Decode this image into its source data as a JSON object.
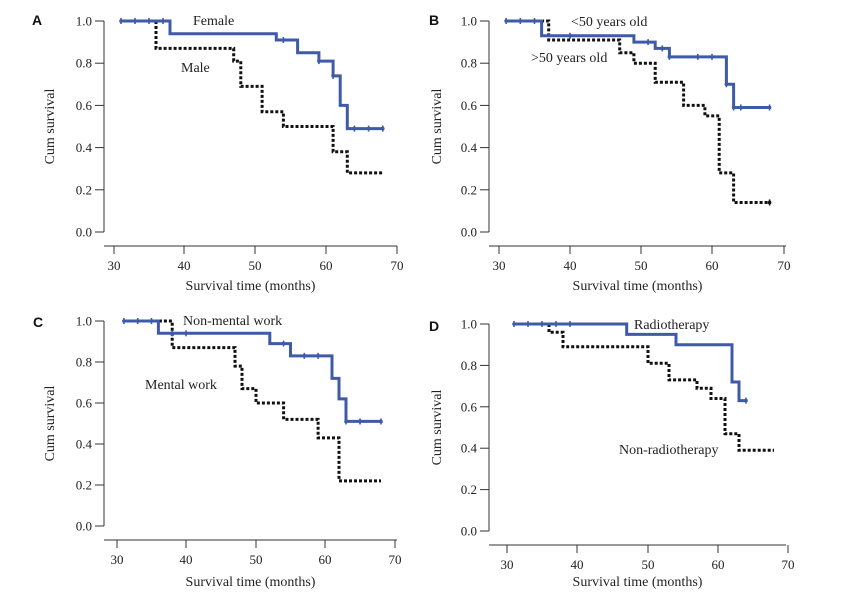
{
  "figure": {
    "colors": {
      "blue": "#3f5aa8",
      "black": "#111111",
      "axis": "#333333"
    }
  },
  "chart_data": [
    {
      "panel": "A",
      "type": "line",
      "xlabel": "Survival time (months)",
      "ylabel": "Cum survival",
      "xlim": [
        30,
        70
      ],
      "ylim": [
        0.0,
        1.0
      ],
      "xticks": [
        "30",
        "40",
        "50",
        "60",
        "70"
      ],
      "yticks": [
        "0.0",
        "0.2",
        "0.4",
        "0.6",
        "0.8",
        "1.0"
      ],
      "series": [
        {
          "name": "Female",
          "color": "#3f5aa8",
          "style": "solid",
          "steps": [
            [
              31,
              1.0
            ],
            [
              38,
              0.94
            ],
            [
              53,
              0.91
            ],
            [
              56,
              0.85
            ],
            [
              59,
              0.81
            ],
            [
              61,
              0.74
            ],
            [
              62,
              0.6
            ],
            [
              63,
              0.49
            ],
            [
              68,
              0.49
            ]
          ],
          "censor_x": [
            31,
            33,
            35,
            37,
            54,
            59,
            61,
            64,
            66,
            68
          ]
        },
        {
          "name": "Male",
          "color": "#111111",
          "style": "dotted",
          "steps": [
            [
              31,
              1.0
            ],
            [
              36,
              0.87
            ],
            [
              47,
              0.81
            ],
            [
              48,
              0.69
            ],
            [
              51,
              0.57
            ],
            [
              54,
              0.5
            ],
            [
              61,
              0.38
            ],
            [
              63,
              0.28
            ],
            [
              68,
              0.28
            ]
          ],
          "censor_x": []
        }
      ]
    },
    {
      "panel": "B",
      "type": "line",
      "xlabel": "Survival time (months)",
      "ylabel": "Cum survival",
      "xlim": [
        30,
        70
      ],
      "ylim": [
        0.0,
        1.0
      ],
      "xticks": [
        "30",
        "40",
        "50",
        "60",
        "70"
      ],
      "yticks": [
        "0.0",
        "0.2",
        "0.4",
        "0.6",
        "0.8",
        "1.0"
      ],
      "series": [
        {
          "name": "<50 years old",
          "color": "#3f5aa8",
          "style": "solid",
          "steps": [
            [
              31,
              1.0
            ],
            [
              36,
              0.93
            ],
            [
              49,
              0.9
            ],
            [
              52,
              0.87
            ],
            [
              54,
              0.83
            ],
            [
              62,
              0.7
            ],
            [
              63,
              0.59
            ],
            [
              68,
              0.59
            ]
          ],
          "censor_x": [
            31,
            33,
            35,
            40,
            51,
            53,
            54,
            58,
            60,
            62,
            63,
            64,
            68
          ]
        },
        {
          "name": ">50 years old",
          "color": "#111111",
          "style": "dotted",
          "steps": [
            [
              31,
              1.0
            ],
            [
              37,
              0.91
            ],
            [
              47,
              0.85
            ],
            [
              49,
              0.8
            ],
            [
              52,
              0.71
            ],
            [
              56,
              0.6
            ],
            [
              59,
              0.55
            ],
            [
              61,
              0.28
            ],
            [
              63,
              0.14
            ],
            [
              68,
              0.14
            ]
          ],
          "censor_x": [
            68
          ]
        }
      ]
    },
    {
      "panel": "C",
      "type": "line",
      "xlabel": "Survival time (months)",
      "ylabel": "Cum survival",
      "xlim": [
        30,
        70
      ],
      "ylim": [
        0.0,
        1.0
      ],
      "xticks": [
        "30",
        "40",
        "50",
        "60",
        "70"
      ],
      "yticks": [
        "0.0",
        "0.2",
        "0.4",
        "0.6",
        "0.8",
        "1.0"
      ],
      "series": [
        {
          "name": "Non-mental work",
          "color": "#3f5aa8",
          "style": "solid",
          "steps": [
            [
              31,
              1.0
            ],
            [
              36,
              0.94
            ],
            [
              52,
              0.89
            ],
            [
              55,
              0.83
            ],
            [
              61,
              0.72
            ],
            [
              62,
              0.62
            ],
            [
              63,
              0.51
            ],
            [
              68,
              0.51
            ]
          ],
          "censor_x": [
            31,
            33,
            35,
            38,
            40,
            54,
            57,
            59,
            63,
            65,
            68
          ]
        },
        {
          "name": "Mental work",
          "color": "#111111",
          "style": "dotted",
          "steps": [
            [
              31,
              1.0
            ],
            [
              38,
              0.87
            ],
            [
              47,
              0.78
            ],
            [
              48,
              0.67
            ],
            [
              50,
              0.6
            ],
            [
              54,
              0.52
            ],
            [
              59,
              0.43
            ],
            [
              62,
              0.22
            ],
            [
              68,
              0.22
            ]
          ],
          "censor_x": []
        }
      ]
    },
    {
      "panel": "D",
      "type": "line",
      "xlabel": "Survival time (months)",
      "ylabel": "Cum survival",
      "xlim": [
        30,
        70
      ],
      "ylim": [
        0.0,
        1.0
      ],
      "xticks": [
        "30",
        "40",
        "50",
        "60",
        "70"
      ],
      "yticks": [
        "0.0",
        "0.2",
        "0.4",
        "0.6",
        "0.8",
        "1.0"
      ],
      "series": [
        {
          "name": "Radiotherapy",
          "color": "#3f5aa8",
          "style": "solid",
          "steps": [
            [
              31,
              1.0
            ],
            [
              47,
              0.95
            ],
            [
              54,
              0.9
            ],
            [
              62,
              0.72
            ],
            [
              63,
              0.63
            ],
            [
              64,
              0.63
            ]
          ],
          "censor_x": [
            31,
            33,
            35,
            37,
            39,
            64
          ]
        },
        {
          "name": "Non-radiotherapy",
          "color": "#111111",
          "style": "dotted",
          "steps": [
            [
              31,
              1.0
            ],
            [
              36,
              0.96
            ],
            [
              38,
              0.89
            ],
            [
              50,
              0.81
            ],
            [
              53,
              0.73
            ],
            [
              57,
              0.69
            ],
            [
              59,
              0.64
            ],
            [
              61,
              0.47
            ],
            [
              63,
              0.39
            ],
            [
              68,
              0.39
            ]
          ],
          "censor_x": []
        }
      ]
    }
  ]
}
